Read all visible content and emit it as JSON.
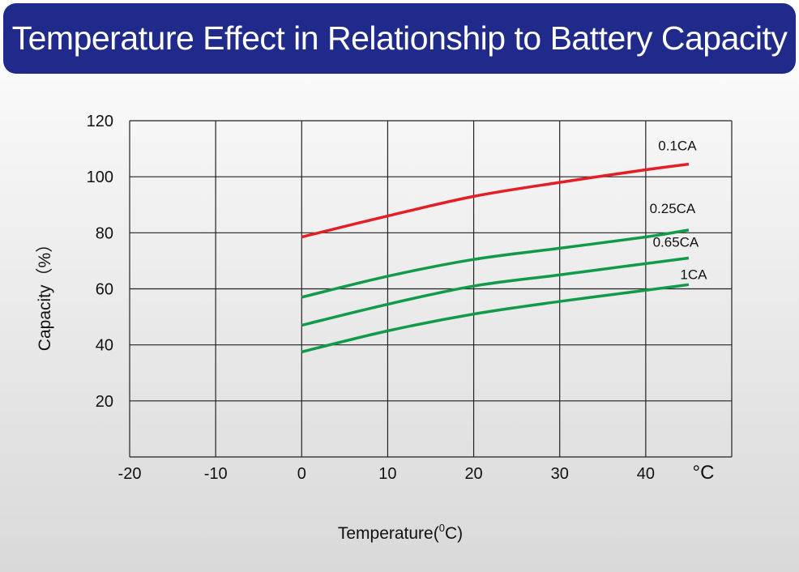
{
  "header": {
    "title": "Temperature Effect in Relationship to Battery Capacity"
  },
  "colors": {
    "banner": "#1f2a8a",
    "red": "#e31e24",
    "green": "#119a48",
    "grid": "#222222"
  },
  "chart_data": {
    "type": "line",
    "title": "Temperature Effect in Relationship to Battery Capacity",
    "xlabel_prefix": "Temperature(",
    "xlabel_sup": "0",
    "xlabel_suffix": "C)",
    "ylabel": "Capacity（%）",
    "x_unit": "°C",
    "xlim": [
      -20,
      50
    ],
    "ylim": [
      0,
      120
    ],
    "xticks": [
      -20,
      -10,
      0,
      10,
      20,
      30,
      40
    ],
    "yticks": [
      20,
      40,
      60,
      80,
      100,
      120
    ],
    "grid": true,
    "series": [
      {
        "name": "0.1CA",
        "color": "#e31e24",
        "x": [
          0,
          10,
          20,
          30,
          40,
          45
        ],
        "y": [
          78.5,
          86,
          93,
          98,
          102.5,
          104.5
        ]
      },
      {
        "name": "0.25CA",
        "color": "#119a48",
        "x": [
          0,
          10,
          20,
          30,
          40,
          45
        ],
        "y": [
          57,
          64.5,
          70.5,
          74.5,
          78.5,
          81
        ]
      },
      {
        "name": "0.65CA",
        "color": "#119a48",
        "x": [
          0,
          10,
          20,
          30,
          40,
          45
        ],
        "y": [
          47,
          54.5,
          61,
          65,
          69,
          71
        ]
      },
      {
        "name": "1CA",
        "color": "#119a48",
        "x": [
          0,
          10,
          20,
          30,
          40,
          45
        ],
        "y": [
          37.5,
          45,
          51,
          55.5,
          59.5,
          61.5
        ]
      }
    ]
  }
}
